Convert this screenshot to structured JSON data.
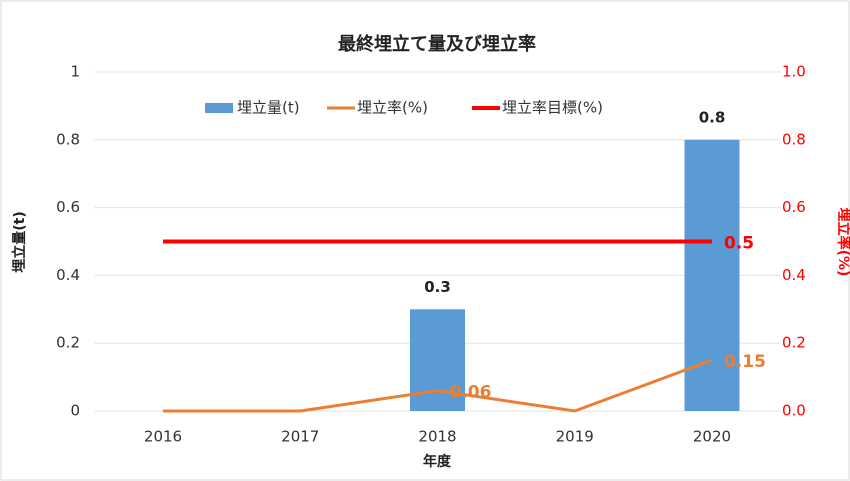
{
  "chart_data": {
    "type": "bar",
    "title": "最終埋立て量及び埋立率",
    "categories": [
      "2016",
      "2017",
      "2018",
      "2019",
      "2020"
    ],
    "series": [
      {
        "name": "埋立量(t)",
        "type": "bar",
        "color": "#5b9bd5",
        "values": [
          0,
          0,
          0.3,
          0,
          0.8
        ],
        "value_labels": [
          null,
          null,
          "0.3",
          null,
          "0.8"
        ]
      },
      {
        "name": "埋立率(%)",
        "type": "line",
        "axis": "y2",
        "color": "#ed7d31",
        "values": [
          0,
          0,
          0.06,
          0,
          0.15
        ],
        "value_labels": [
          null,
          null,
          "0.06",
          null,
          "0.15"
        ]
      },
      {
        "name": "埋立率目標(%)",
        "type": "line",
        "axis": "y2",
        "color": "#ff0000",
        "values": [
          0.5,
          0.5,
          0.5,
          0.5,
          0.5
        ],
        "value_labels": [
          null,
          null,
          null,
          null,
          "0.5"
        ]
      }
    ],
    "ylim": [
      0,
      1
    ],
    "yticks": [
      0,
      0.2,
      0.4,
      0.6,
      0.8,
      1
    ],
    "y2lim": [
      0,
      1
    ],
    "y2ticks": [
      {
        "value": 0,
        "label": "0.0"
      },
      0.2,
      0.4,
      0.6,
      0.8,
      {
        "value": 1,
        "label": "1.0"
      }
    ],
    "xlabel": "年度",
    "ylabel": "埋立量(t)",
    "y2label": "埋立率(%)",
    "grid": true,
    "legend": "top"
  }
}
